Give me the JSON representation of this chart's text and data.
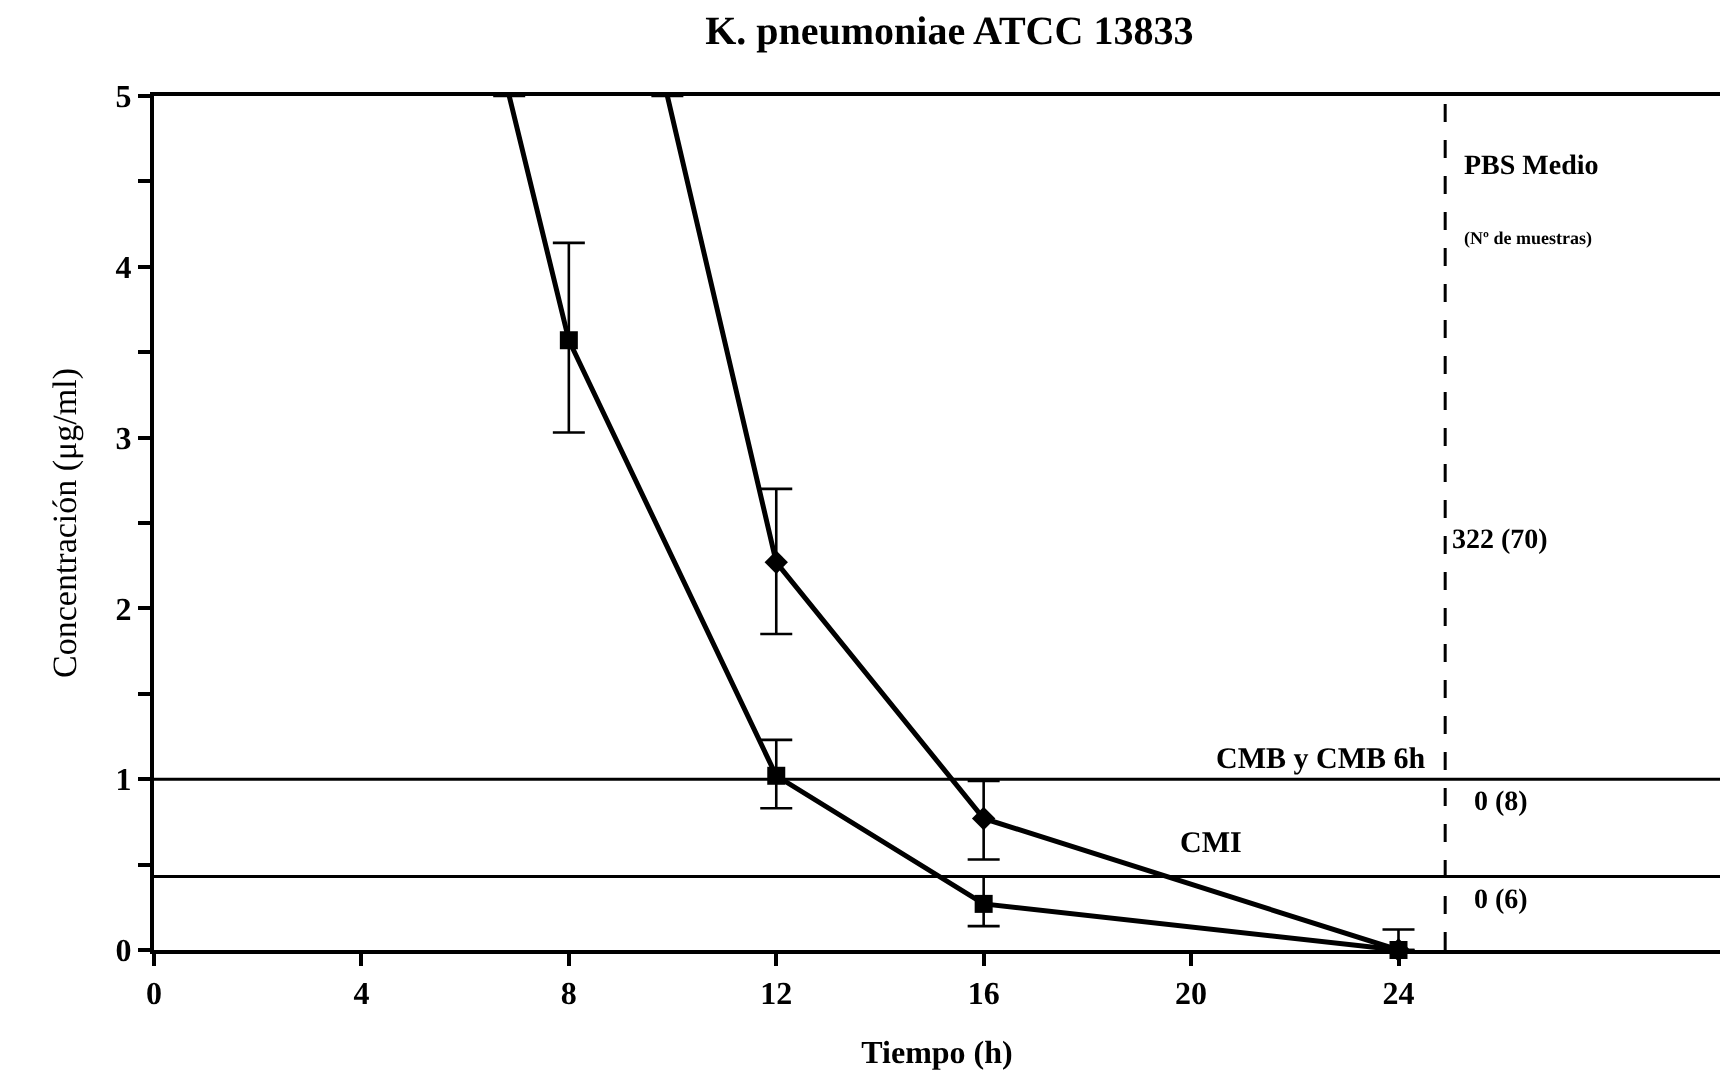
{
  "chart_data": {
    "type": "line",
    "title": "K. pneumoniae ATCC 13833",
    "xlabel": "Tiempo (h)",
    "ylabel": "Concentración (μg/ml)",
    "xlim": [
      0,
      30.2
    ],
    "xticks": [
      0,
      4,
      8,
      12,
      16,
      20,
      24
    ],
    "ylim": [
      0,
      5
    ],
    "yticks": [
      0,
      {
        "value": 0.5,
        "label": null
      },
      1,
      {
        "value": 1.5,
        "label": null
      },
      2,
      {
        "value": 2.5,
        "label": null
      },
      3,
      {
        "value": 3.5,
        "label": null
      },
      4,
      {
        "value": 4.5,
        "label": null
      },
      5
    ],
    "series": [
      {
        "color": "#000000",
        "marker": "square",
        "x": [
          6.85,
          8,
          12,
          16,
          24
        ],
        "values": [
          5,
          3.57,
          1.02,
          0.27,
          0
        ],
        "errors": [
          null,
          [
            3.03,
            4.14
          ],
          [
            0.83,
            1.23
          ],
          [
            0.14,
            0.43
          ],
          [
            0,
            0.12
          ]
        ]
      },
      {
        "color": "#000000",
        "marker": "diamond",
        "x": [
          9.9,
          12,
          16,
          24
        ],
        "values": [
          5,
          2.27,
          0.77,
          0
        ],
        "errors": [
          null,
          [
            1.85,
            2.7
          ],
          [
            0.53,
            0.99
          ],
          null
        ]
      }
    ],
    "ref_lines": [
      {
        "axis": "y",
        "value": 1,
        "label": "CMB y CMB 6h",
        "color": "#000000",
        "line_style": "solid"
      },
      {
        "axis": "y",
        "value": 0.43,
        "label": "CMI",
        "color": "#000000",
        "line_style": "solid"
      },
      {
        "axis": "x",
        "value": 24.9,
        "color": "#000000",
        "line_style": "dashed"
      }
    ],
    "annotations": [
      "PBS Medio",
      "(Nº de muestras)",
      "322 (70)",
      "0 (8)",
      "0 (6)"
    ]
  }
}
